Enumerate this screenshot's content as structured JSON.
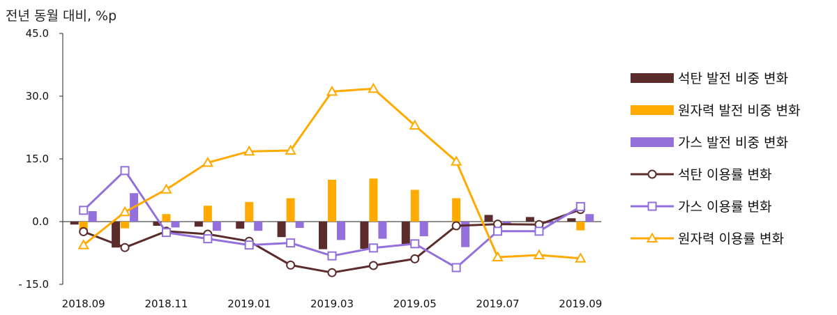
{
  "chart_data": {
    "type": "bar",
    "ylabel": "전년 동월 대비, %p",
    "ylim": [
      -15,
      45
    ],
    "yticks": [
      "45.0",
      "30.0",
      "15.0",
      "0.0",
      "- 15.0"
    ],
    "ytick_values": [
      45,
      30,
      15,
      0,
      -15
    ],
    "categories": [
      "2018.09",
      "2018.10",
      "2018.11",
      "2018.12",
      "2019.01",
      "2019.02",
      "2019.03",
      "2019.04",
      "2019.05",
      "2019.06",
      "2019.07",
      "2019.08",
      "2019.09"
    ],
    "xtick_labels": [
      "2018.09",
      "",
      "2018.11",
      "",
      "2019.01",
      "",
      "2019.03",
      "",
      "2019.05",
      "",
      "2019.07",
      "",
      "2019.09"
    ],
    "bar_series": [
      {
        "name": "석탄 발전 비중 변화",
        "color": "#5b2c2c",
        "values": [
          -0.7,
          -6.2,
          -1.0,
          -1.2,
          -1.7,
          -3.7,
          -6.6,
          -6.5,
          -5.5,
          0.1,
          1.6,
          1.1,
          0.8
        ]
      },
      {
        "name": "원자력 발전 비중 변화",
        "color": "#ffaa00",
        "values": [
          -2.0,
          -1.6,
          1.8,
          3.8,
          4.7,
          5.6,
          10.0,
          10.3,
          7.6,
          5.6,
          -0.1,
          -0.3,
          -2.1
        ]
      },
      {
        "name": "가스 발전 비중 변화",
        "color": "#9370db",
        "values": [
          2.5,
          6.8,
          -1.4,
          -2.2,
          -2.2,
          -1.5,
          -4.4,
          -4.1,
          -3.5,
          -6.1,
          -0.7,
          -0.4,
          1.8
        ]
      }
    ],
    "line_series": [
      {
        "name": "석탄 이용률 변화",
        "color": "#5b2c2c",
        "marker": "circle",
        "values": [
          -2.4,
          -6.2,
          -2.3,
          -3.0,
          -4.7,
          -10.4,
          -12.2,
          -10.5,
          -8.9,
          -1.0,
          -0.6,
          -0.7,
          2.9
        ]
      },
      {
        "name": "가스 이용률 변화",
        "color": "#9370db",
        "marker": "square",
        "values": [
          2.7,
          12.2,
          -2.6,
          -4.1,
          -5.6,
          -5.1,
          -8.2,
          -6.3,
          -5.3,
          -11.0,
          -2.3,
          -2.3,
          3.6
        ]
      },
      {
        "name": "원자력 이용률 변화",
        "color": "#ffaa00",
        "marker": "triangle",
        "values": [
          -5.6,
          2.3,
          7.7,
          14.1,
          16.8,
          17.0,
          31.1,
          31.8,
          23.0,
          14.4,
          -8.5,
          -8.0,
          -8.8
        ]
      }
    ],
    "legend_position": "right",
    "grid": false
  }
}
